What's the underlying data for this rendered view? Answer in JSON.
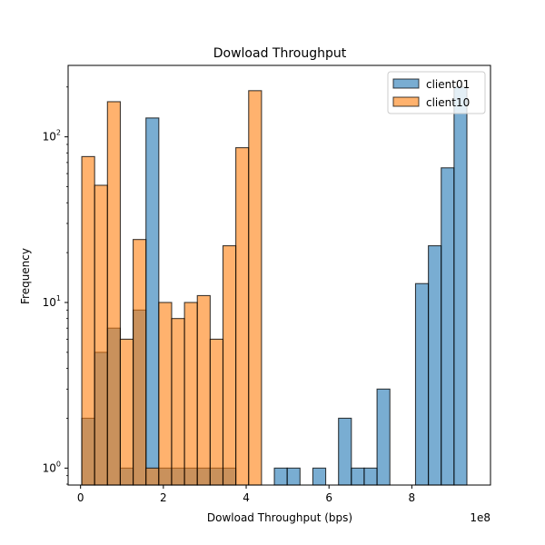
{
  "chart_data": {
    "type": "histogram",
    "title": "Dowload Throughput",
    "xlabel": "Dowload Throughput (bps)",
    "ylabel": "Frequency",
    "x_offset_label": "1e8",
    "yscale": "log",
    "xlim": [
      -0.3,
      9.9
    ],
    "ylim": [
      0.79,
      270
    ],
    "x_ticks": [
      {
        "value": 0,
        "label": "0"
      },
      {
        "value": 2,
        "label": "2"
      },
      {
        "value": 4,
        "label": "4"
      },
      {
        "value": 6,
        "label": "6"
      },
      {
        "value": 8,
        "label": "8"
      }
    ],
    "y_ticks": [
      {
        "value": 1,
        "base": "10",
        "exp": "0"
      },
      {
        "value": 10,
        "base": "10",
        "exp": "1"
      },
      {
        "value": 100,
        "base": "10",
        "exp": "2"
      }
    ],
    "legend": {
      "location": "upper right"
    },
    "series": [
      {
        "name": "client01",
        "color": "#1f77b4",
        "opacity": 0.6,
        "bin_start": 0.03,
        "bin_width": 0.31,
        "values": [
          2,
          5,
          7,
          1,
          9,
          130,
          1,
          1,
          1,
          1,
          1,
          1,
          0,
          0,
          0,
          1,
          1,
          0,
          1,
          0,
          2,
          1,
          1,
          3,
          0,
          0,
          13,
          22,
          65,
          200
        ]
      },
      {
        "name": "client10",
        "color": "#ff7f0e",
        "opacity": 0.6,
        "bin_start": 0.03,
        "bin_width": 0.31,
        "values": [
          76,
          51,
          163,
          6,
          24,
          1,
          10,
          8,
          10,
          11,
          6,
          22,
          86,
          190
        ]
      }
    ]
  }
}
